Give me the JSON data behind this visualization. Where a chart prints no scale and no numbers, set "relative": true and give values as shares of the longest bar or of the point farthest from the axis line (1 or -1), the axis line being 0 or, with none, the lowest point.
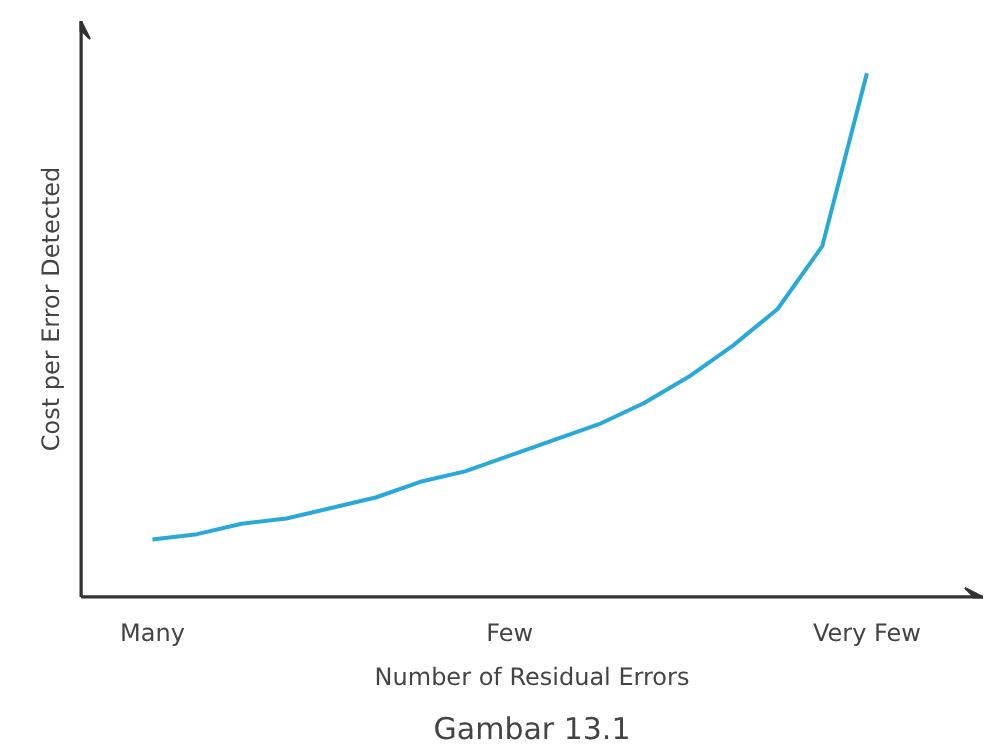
{
  "chart_data": {
    "type": "line",
    "relative": true,
    "xlabel": "Number of Residual Errors",
    "ylabel": "Cost per Error Detected",
    "annotations": [
      "Gambar 13.1"
    ],
    "categories": [
      "Many",
      null,
      null,
      null,
      null,
      null,
      null,
      null,
      "Few",
      null,
      null,
      null,
      null,
      null,
      null,
      null,
      "Very Few"
    ],
    "series": [
      {
        "color": "#29a9d8",
        "values": [
          0.11,
          0.12,
          0.14,
          0.15,
          0.17,
          0.19,
          0.22,
          0.24,
          0.27,
          0.3,
          0.33,
          0.37,
          0.42,
          0.48,
          0.55,
          0.67,
          1
        ]
      }
    ],
    "grid": false
  }
}
